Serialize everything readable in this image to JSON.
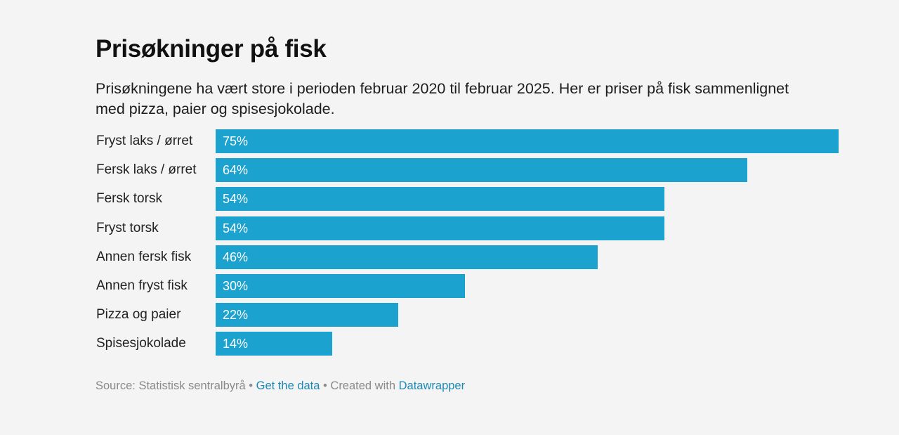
{
  "title": "Prisøkninger på fisk",
  "subtitle": "Prisøkningene ha vært store i perioden februar 2020 til februar 2025. Her er priser på fisk sammenlignet med pizza, paier og spisesjokolade.",
  "footer": {
    "source": "Source: Statistisk sentralbyrå",
    "sep1": " • ",
    "get_data": "Get the data",
    "sep2": " • Created with ",
    "datawrapper": "Datawrapper"
  },
  "colors": {
    "bar": "#1ba2cf",
    "background": "#f4f4f4",
    "link": "#1d88b4"
  },
  "rows": [
    {
      "label": "Fryst laks / ørret",
      "value": 75,
      "display": "75%"
    },
    {
      "label": "Fersk laks / ørret",
      "value": 64,
      "display": "64%"
    },
    {
      "label": "Fersk torsk",
      "value": 54,
      "display": "54%"
    },
    {
      "label": "Fryst torsk",
      "value": 54,
      "display": "54%"
    },
    {
      "label": "Annen fersk fisk",
      "value": 46,
      "display": "46%"
    },
    {
      "label": "Annen fryst fisk",
      "value": 30,
      "display": "30%"
    },
    {
      "label": "Pizza og paier",
      "value": 22,
      "display": "22%"
    },
    {
      "label": "Spisesjokolade",
      "value": 14,
      "display": "14%"
    }
  ],
  "chart_data": {
    "type": "bar",
    "orientation": "horizontal",
    "title": "Prisøkninger på fisk",
    "subtitle": "Prisøkningene ha vært store i perioden februar 2020 til februar 2025. Her er priser på fisk sammenlignet med pizza, paier og spisesjokolade.",
    "categories": [
      "Fryst laks / ørret",
      "Fersk laks / ørret",
      "Fersk torsk",
      "Fryst torsk",
      "Annen fersk fisk",
      "Annen fryst fisk",
      "Pizza og paier",
      "Spisesjokolade"
    ],
    "values": [
      75,
      64,
      54,
      54,
      46,
      30,
      22,
      14
    ],
    "unit": "%",
    "xlabel": "",
    "ylabel": "",
    "xlim": [
      0,
      75
    ],
    "grid": false,
    "legend": null,
    "source": "Statistisk sentralbyrå"
  }
}
